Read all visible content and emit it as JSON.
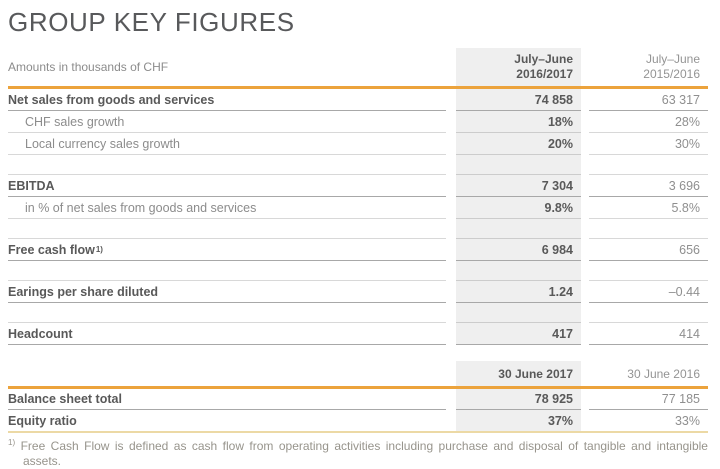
{
  "title": "GROUP KEY FIGURES",
  "amounts_note": "Amounts in thousands of CHF",
  "colors": {
    "accent_line": "#ECA33C",
    "soft_line": "#ECD9A5",
    "column_shade": "#EFEFEF",
    "text_dark": "#595959",
    "text_gray": "#8C8C8C"
  },
  "table_key_figures": {
    "current_period": {
      "line1": "July–June",
      "line2": "2016/2017"
    },
    "prior_period": {
      "line1": "July–June",
      "line2": "2015/2016"
    },
    "rows": [
      {
        "label": "Net sales from goods and services",
        "v1": "74 858",
        "v2": "63 317"
      },
      {
        "label": "CHF sales growth",
        "v1": "18%",
        "v2": "28%"
      },
      {
        "label": "Local currency sales growth",
        "v1": "20%",
        "v2": "30%"
      },
      {
        "spacer": true
      },
      {
        "label": "EBITDA",
        "v1": "7 304",
        "v2": "3 696"
      },
      {
        "label": "in % of net sales from goods and services",
        "v1": "9.8%",
        "v2": "5.8%"
      },
      {
        "spacer": true
      },
      {
        "label": "Free cash flow",
        "sup": "1)",
        "v1": "6 984",
        "v2": "656"
      },
      {
        "spacer": true
      },
      {
        "label": "Earings per share diluted",
        "v1": "1.24",
        "v2": "–0.44"
      },
      {
        "spacer": true
      },
      {
        "label": "Headcount",
        "v1": "417",
        "v2": "414"
      }
    ]
  },
  "table_balance": {
    "current_date": "30 June 2017",
    "prior_date": "30 June 2016",
    "rows": [
      {
        "label": "Balance sheet total",
        "v1": "78 925",
        "v2": "77 185"
      },
      {
        "label": "Equity ratio",
        "v1": "37%",
        "v2": "33%"
      }
    ]
  },
  "footnote": {
    "sup": "1)",
    "text": "Free Cash Flow is defined as cash flow from operating activities including purchase and disposal of tangible and intangible assets."
  }
}
